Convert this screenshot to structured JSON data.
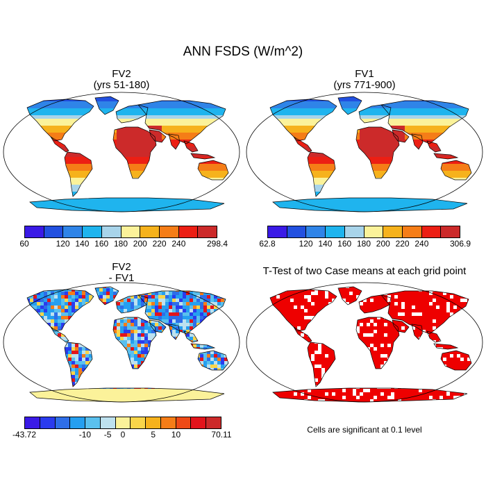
{
  "title": "ANN FSDS (W/m^2)",
  "panels": {
    "top_left": {
      "title": "FV2",
      "subtitle": "(yrs 51-180)"
    },
    "top_right": {
      "title": "FV1",
      "subtitle": "(yrs 771-900)"
    },
    "bottom_left": {
      "title": "FV2",
      "subtitle": "- FV1"
    },
    "bottom_right": {
      "title": "T-Test of two Case means at each grid point",
      "note": "Cells are significant at 0.1 level"
    }
  },
  "colorbars": {
    "top_left": {
      "colors": [
        "#3a1ae6",
        "#2250e0",
        "#2f84e8",
        "#1fb4ee",
        "#a8d4ea",
        "#fbf29a",
        "#f6b21c",
        "#f57d17",
        "#ec1f14",
        "#cc2a2a"
      ],
      "labels": [
        "60",
        "120",
        "140",
        "160",
        "180",
        "200",
        "220",
        "240",
        "298.4"
      ]
    },
    "top_right": {
      "colors": [
        "#3a1ae6",
        "#2250e0",
        "#2f84e8",
        "#1fb4ee",
        "#a8d4ea",
        "#fbf29a",
        "#f6b21c",
        "#f57d17",
        "#ec1f14",
        "#cc2a2a"
      ],
      "labels": [
        "62.8",
        "120",
        "140",
        "160",
        "180",
        "200",
        "220",
        "240",
        "306.9"
      ]
    },
    "bottom_left": {
      "colors": [
        "#3a1ae6",
        "#2a3bee",
        "#2e6ee8",
        "#259ff0",
        "#5ac0ee",
        "#bde1ef",
        "#fbf29a",
        "#f9d54a",
        "#f6b21c",
        "#f57d17",
        "#ee4a16",
        "#e3141b",
        "#cc2a2a"
      ],
      "labels": [
        "-43.72",
        "-10",
        "-5",
        "0",
        "5",
        "10",
        "70.11"
      ]
    }
  },
  "colors": {
    "land_outline": "#000000",
    "significant": "#ee0000"
  }
}
